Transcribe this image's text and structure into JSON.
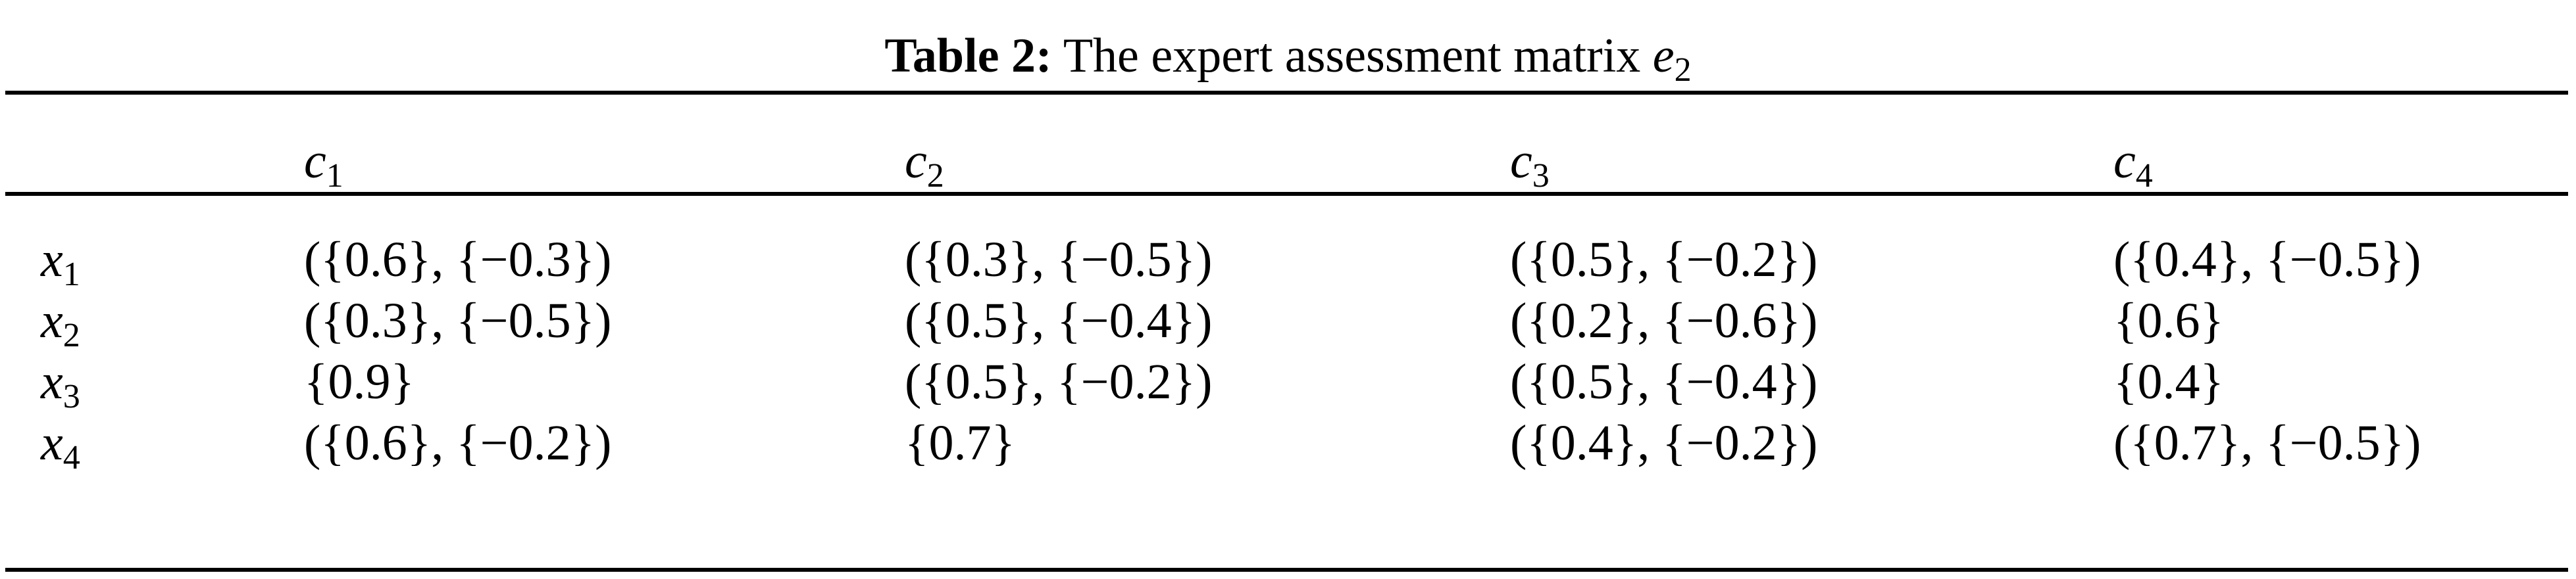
{
  "caption": {
    "label": "Table 2:",
    "text": "The expert assessment matrix",
    "symbol": "e",
    "symbol_sub": "2"
  },
  "table": {
    "columns": [
      {
        "symbol": "c",
        "sub": "1"
      },
      {
        "symbol": "c",
        "sub": "2"
      },
      {
        "symbol": "c",
        "sub": "3"
      },
      {
        "symbol": "c",
        "sub": "4"
      }
    ],
    "rows": [
      {
        "symbol": "x",
        "sub": "1",
        "cells": [
          "({0.6}, {−0.3})",
          "({0.3}, {−0.5})",
          "({0.5}, {−0.2})",
          "({0.4}, {−0.5})"
        ]
      },
      {
        "symbol": "x",
        "sub": "2",
        "cells": [
          "({0.3}, {−0.5})",
          "({0.5}, {−0.4})",
          "({0.2}, {−0.6})",
          "{0.6}"
        ]
      },
      {
        "symbol": "x",
        "sub": "3",
        "cells": [
          "{0.9}",
          "({0.5}, {−0.2})",
          "({0.5}, {−0.4})",
          "{0.4}"
        ]
      },
      {
        "symbol": "x",
        "sub": "4",
        "cells": [
          "({0.6}, {−0.2})",
          "{0.7}",
          "({0.4}, {−0.2})",
          "({0.7}, {−0.5})"
        ]
      }
    ]
  }
}
